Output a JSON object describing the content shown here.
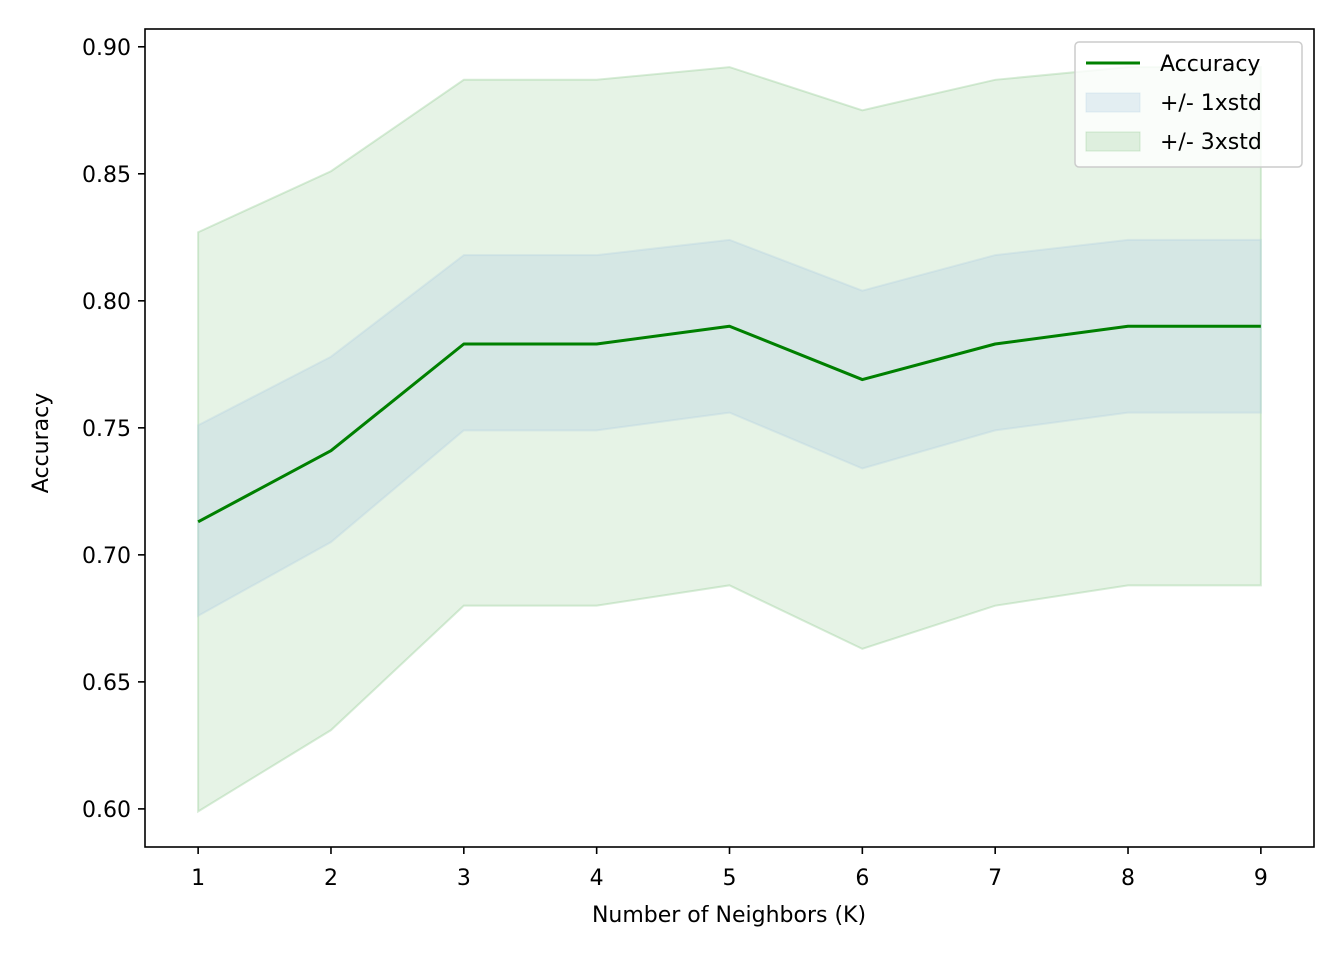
{
  "chart_data": {
    "type": "line",
    "title": "",
    "xlabel": "Number of Neighbors (K)",
    "ylabel": "Accuracy",
    "xlim": [
      0.6,
      9.4
    ],
    "ylim": [
      0.585,
      0.907
    ],
    "x": [
      1,
      2,
      3,
      4,
      5,
      6,
      7,
      8,
      9
    ],
    "x_ticks": [
      "1",
      "2",
      "3",
      "4",
      "5",
      "6",
      "7",
      "8",
      "9"
    ],
    "y_ticks": [
      "0.60",
      "0.65",
      "0.70",
      "0.75",
      "0.80",
      "0.85",
      "0.90"
    ],
    "y_tick_values": [
      0.6,
      0.65,
      0.7,
      0.75,
      0.8,
      0.85,
      0.9
    ],
    "grid": false,
    "legend_position": "top-right",
    "series": [
      {
        "name": "Accuracy",
        "color": "#008000",
        "values": [
          0.713,
          0.741,
          0.783,
          0.783,
          0.79,
          0.769,
          0.783,
          0.79,
          0.79
        ]
      }
    ],
    "bands": [
      {
        "name": "+/- 1xstd",
        "color": "#b0cce0",
        "lower": [
          0.676,
          0.705,
          0.749,
          0.749,
          0.756,
          0.734,
          0.749,
          0.756,
          0.756
        ],
        "upper": [
          0.751,
          0.778,
          0.818,
          0.818,
          0.824,
          0.804,
          0.818,
          0.824,
          0.824
        ]
      },
      {
        "name": "+/- 3xstd",
        "color": "#8cc98c",
        "lower": [
          0.599,
          0.631,
          0.68,
          0.68,
          0.688,
          0.663,
          0.68,
          0.688,
          0.688
        ],
        "upper": [
          0.827,
          0.851,
          0.887,
          0.887,
          0.892,
          0.875,
          0.887,
          0.892,
          0.892
        ]
      }
    ]
  }
}
